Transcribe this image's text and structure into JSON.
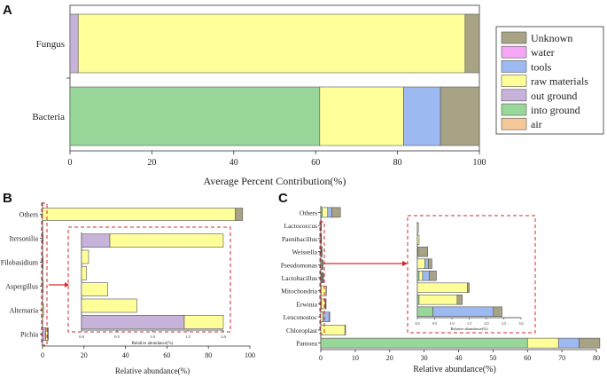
{
  "colors": {
    "Unknown": "#a8a384",
    "water": "#f5a6f5",
    "tools": "#9db9f2",
    "raw materials": "#ffff99",
    "out ground": "#c7b3d9",
    "into ground": "#99d699",
    "air": "#f5c89a"
  },
  "chart_data": [
    {
      "panel": "A",
      "type": "bar",
      "orientation": "horizontal",
      "stacked": true,
      "categories": [
        "Fungus",
        "Bacteria"
      ],
      "series": [
        {
          "name": "air",
          "values": [
            0,
            0
          ]
        },
        {
          "name": "into ground",
          "values": [
            0,
            61
          ]
        },
        {
          "name": "out ground",
          "values": [
            2,
            0
          ]
        },
        {
          "name": "raw materials",
          "values": [
            94.5,
            20.5
          ]
        },
        {
          "name": "tools",
          "values": [
            0,
            9
          ]
        },
        {
          "name": "water",
          "values": [
            0,
            0
          ]
        },
        {
          "name": "Unknown",
          "values": [
            3.5,
            9.5
          ]
        }
      ],
      "xlabel": "Average Percent Contribution(%)",
      "ylabel": "",
      "xlim": [
        0,
        100
      ],
      "xticks": [
        "0",
        "20",
        "40",
        "60",
        "80",
        "100"
      ],
      "legend": {
        "placement": "right",
        "entries": [
          "Unknown",
          "water",
          "tools",
          "raw materials",
          "out ground",
          "into ground",
          "air"
        ]
      }
    },
    {
      "panel": "B",
      "type": "bar",
      "orientation": "horizontal",
      "stacked": true,
      "categories": [
        "Pichia",
        "Alternaria",
        "Aspergillus",
        "Filobasidium",
        "Itersonilia",
        "Others"
      ],
      "series": [
        {
          "name": "out ground",
          "values": [
            1.5,
            0,
            0,
            0,
            0,
            0
          ]
        },
        {
          "name": "raw materials",
          "values": [
            1,
            0.5,
            0.35,
            0.1,
            0.12,
            93
          ]
        },
        {
          "name": "Unknown",
          "values": [
            0.3,
            0,
            0,
            0,
            0,
            3.5
          ]
        }
      ],
      "xlabel": "Relative abundance(%)",
      "xlim": [
        0,
        100
      ],
      "xticks": [
        "0",
        "20",
        "40",
        "60",
        "80",
        "100"
      ],
      "inset": {
        "xlabel": "Relative abundance(%)",
        "xlim": [
          0,
          2
        ],
        "xticks": [
          "0.0",
          "0.5",
          "1.0",
          "1.5",
          "2.0"
        ],
        "rows": [
          {
            "category": "Pichia",
            "out ground": 1.45,
            "raw materials": 0.55
          },
          {
            "category": "Alternaria",
            "out ground": 0,
            "raw materials": 0.78
          },
          {
            "category": "Aspergillus",
            "out ground": 0,
            "raw materials": 0.37
          },
          {
            "category": "Filobasidium-a",
            "out ground": 0,
            "raw materials": 0.07
          },
          {
            "category": "Filobasidium-b",
            "out ground": 0,
            "raw materials": 0.1
          },
          {
            "category": "Itersonilia",
            "out ground": 0.4,
            "raw materials": 1.6
          }
        ]
      }
    },
    {
      "panel": "C",
      "type": "bar",
      "orientation": "horizontal",
      "stacked": true,
      "categories": [
        "Pantoea",
        "Chloroplast",
        "Leuconostoc",
        "Erwinia",
        "Mitochondria",
        "Lactobacillus",
        "Pseudomonas",
        "Weissella",
        "Paenibacillus",
        "Lactococcus",
        "Others"
      ],
      "series": [
        {
          "name": "into ground",
          "values": [
            60,
            0,
            0,
            0.2,
            0.1,
            0.1,
            0.1,
            0.1,
            0,
            0,
            0.4
          ]
        },
        {
          "name": "raw materials",
          "values": [
            9,
            7,
            0.6,
            1.1,
            1.4,
            0.2,
            0.3,
            0.05,
            0.1,
            0.05,
            1.6
          ]
        },
        {
          "name": "tools",
          "values": [
            6,
            0,
            1.8,
            0.1,
            0,
            0.2,
            0.1,
            0,
            0,
            0,
            1.2
          ]
        },
        {
          "name": "Unknown",
          "values": [
            6,
            0.2,
            0.2,
            0.15,
            0.1,
            0.3,
            0.1,
            0.3,
            0.05,
            0.02,
            2.5
          ]
        }
      ],
      "xlabel": "Relative abundance(%)",
      "xlim": [
        0,
        80
      ],
      "xticks": [
        "0",
        "10",
        "20",
        "30",
        "40",
        "50",
        "60",
        "70",
        "80"
      ],
      "inset": {
        "xlabel": "Relative abundance(%)",
        "xlim": [
          0,
          3
        ],
        "xticks": [
          "0.0",
          "0.5",
          "1.0",
          "1.5",
          "2.0",
          "2.5",
          "3.0"
        ],
        "rows": [
          {
            "category": "Leuconostoc",
            "into ground": 0.45,
            "tools": 1.75,
            "Unknown": 0.25
          },
          {
            "category": "Erwinia",
            "into ground": 0.05,
            "raw materials": 1.1,
            "Unknown": 0.15
          },
          {
            "category": "Mitochondria",
            "raw materials": 1.45,
            "Unknown": 0.05
          },
          {
            "category": "Lactobacillus",
            "into ground": 0.05,
            "tools": 0.2,
            "raw materials": 0.1,
            "Unknown": 0.2
          },
          {
            "category": "Pseudomonas",
            "raw materials": 0.22,
            "tools": 0.1,
            "Unknown": 0.1
          },
          {
            "category": "Weissella",
            "into ground": 0.02,
            "Unknown": 0.28
          },
          {
            "category": "Paenibacillus",
            "raw materials": 0.05
          },
          {
            "category": "Lactococcus",
            "raw materials": 0.03
          }
        ]
      }
    }
  ]
}
